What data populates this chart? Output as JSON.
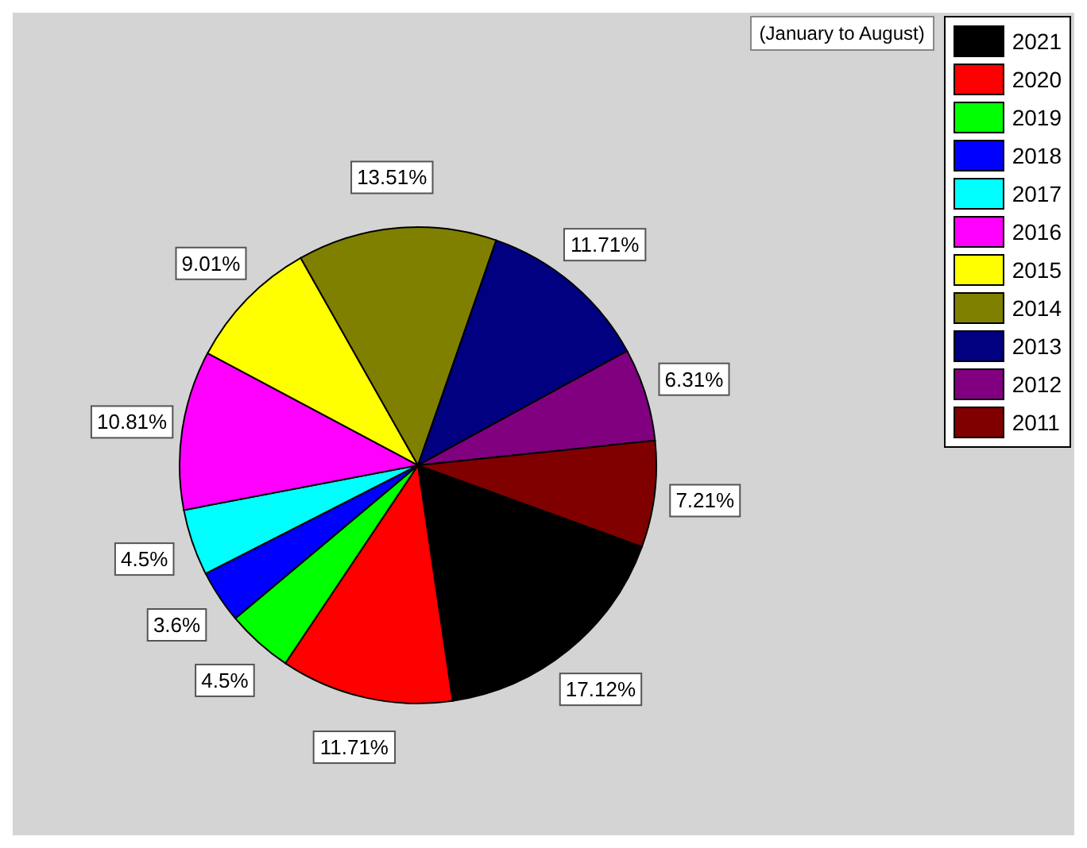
{
  "chart_data": {
    "type": "pie",
    "legend_title": "(January to August)",
    "legend": "top right",
    "categories": [
      "2021",
      "2020",
      "2019",
      "2018",
      "2017",
      "2016",
      "2015",
      "2014",
      "2013",
      "2012",
      "2011"
    ],
    "values": [
      17.12,
      11.71,
      4.5,
      3.6,
      4.5,
      10.81,
      9.01,
      13.51,
      11.71,
      6.31,
      7.21
    ],
    "value_labels": [
      "17.12%",
      "11.71%",
      "4.5%",
      "3.6%",
      "4.5%",
      "10.81%",
      "9.01%",
      "13.51%",
      "11.71%",
      "6.31%",
      "7.21%"
    ],
    "colors": [
      "#000000",
      "#ff0000",
      "#00ff00",
      "#0000ff",
      "#00ffff",
      "#ff00ff",
      "#ffff00",
      "#808000",
      "#000080",
      "#800080",
      "#800000"
    ]
  }
}
